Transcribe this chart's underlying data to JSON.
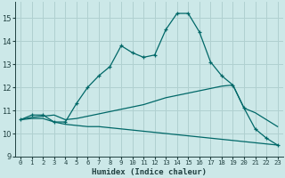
{
  "xlabel": "Humidex (Indice chaleur)",
  "bg_color": "#cce8e8",
  "grid_color": "#b0d0d0",
  "line_color": "#006868",
  "xlim": [
    -0.5,
    23.5
  ],
  "ylim": [
    9.0,
    15.7
  ],
  "yticks": [
    9,
    10,
    11,
    12,
    13,
    14,
    15
  ],
  "xticks": [
    0,
    1,
    2,
    3,
    4,
    5,
    6,
    7,
    8,
    9,
    10,
    11,
    12,
    13,
    14,
    15,
    16,
    17,
    18,
    19,
    20,
    21,
    22,
    23
  ],
  "line1_x": [
    0,
    1,
    2,
    3,
    4,
    5,
    6,
    7,
    8,
    9,
    10,
    11,
    12,
    13,
    14,
    15,
    16,
    17,
    18,
    19,
    20,
    21,
    22,
    23
  ],
  "line1_y": [
    10.6,
    10.8,
    10.8,
    10.5,
    10.5,
    11.3,
    12.0,
    12.5,
    12.9,
    13.8,
    13.5,
    13.3,
    13.4,
    14.5,
    15.2,
    15.2,
    14.4,
    13.1,
    12.5,
    12.1,
    11.1,
    10.2,
    9.8,
    9.5
  ],
  "line2_x": [
    0,
    1,
    2,
    3,
    4,
    5,
    6,
    7,
    8,
    9,
    10,
    11,
    12,
    13,
    14,
    15,
    16,
    17,
    18,
    19,
    20,
    21,
    22,
    23
  ],
  "line2_y": [
    10.6,
    10.7,
    10.75,
    10.8,
    10.6,
    10.65,
    10.75,
    10.85,
    10.95,
    11.05,
    11.15,
    11.25,
    11.4,
    11.55,
    11.65,
    11.75,
    11.85,
    11.95,
    12.05,
    12.1,
    11.1,
    10.9,
    10.6,
    10.3
  ],
  "line3_x": [
    0,
    1,
    2,
    3,
    4,
    5,
    6,
    7,
    8,
    9,
    10,
    11,
    12,
    13,
    14,
    15,
    16,
    17,
    18,
    19,
    20,
    21,
    22,
    23
  ],
  "line3_y": [
    10.6,
    10.65,
    10.65,
    10.5,
    10.4,
    10.35,
    10.3,
    10.3,
    10.25,
    10.2,
    10.15,
    10.1,
    10.05,
    10.0,
    9.95,
    9.9,
    9.85,
    9.8,
    9.75,
    9.7,
    9.65,
    9.6,
    9.55,
    9.5
  ]
}
